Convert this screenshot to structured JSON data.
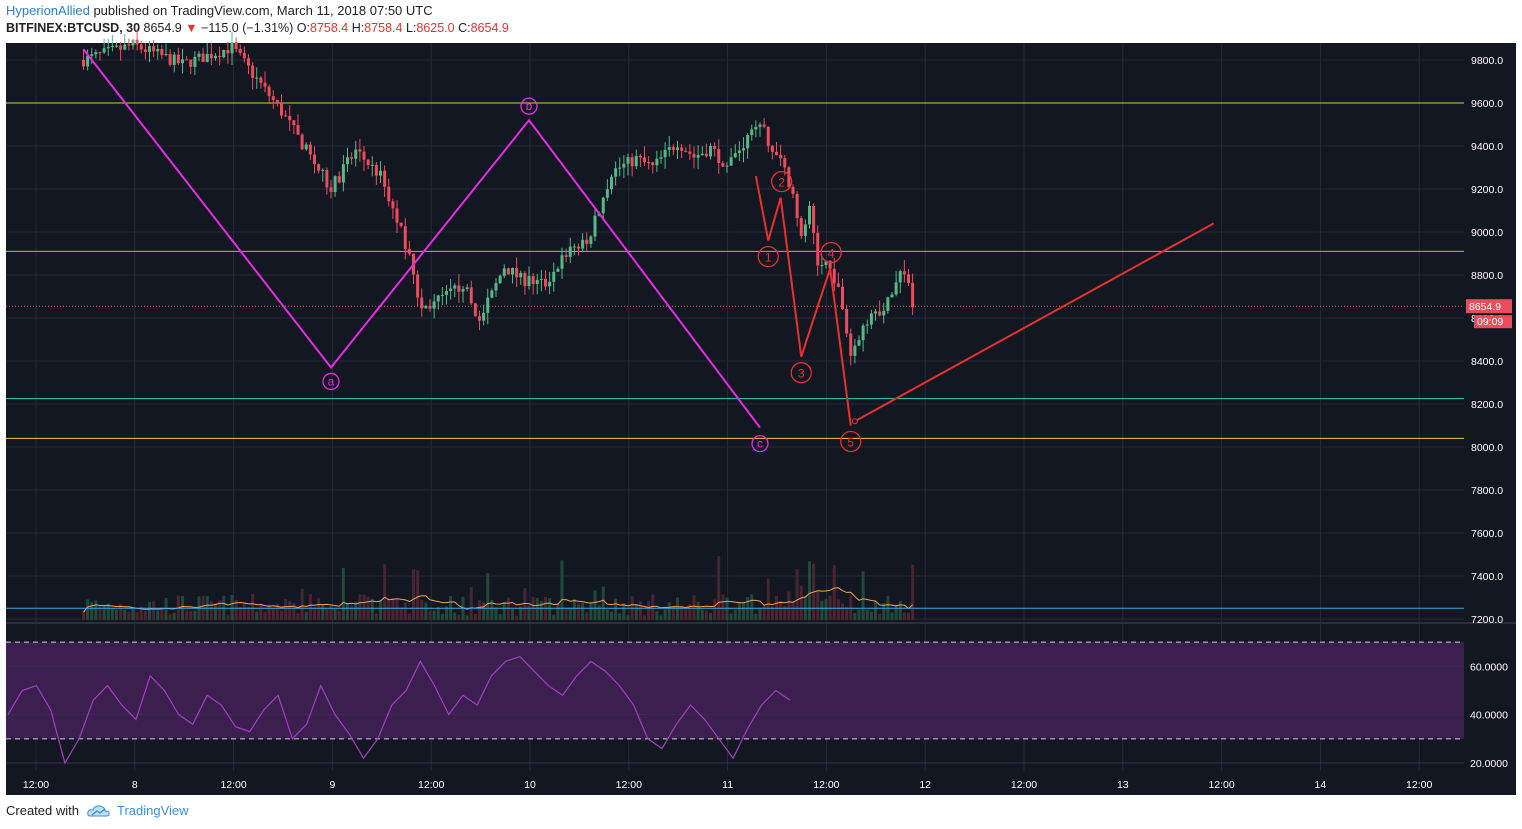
{
  "header": {
    "author": "HyperionAllied",
    "published_text": "published on TradingView.com, March 11, 2018 07:50 UTC",
    "symbol": "BITFINEX:BTCUSD, 30",
    "last": "8654.9",
    "change_arrow": "▼",
    "change": "−115.0 (−1.31%)",
    "o_label": "O:",
    "o_value": "8758.4",
    "h_label": "H:",
    "h_value": "8758.4",
    "l_label": "L:",
    "l_value": "8625.0",
    "c_label": "C:",
    "c_value": "8654.9"
  },
  "footer": {
    "created_with": "Created with",
    "brand": "TradingView",
    "icon": "tradingview-cloud-icon"
  },
  "colors": {
    "background": "#131722",
    "up": "#53b987",
    "down": "#eb4d5c",
    "wave": "#e52ce3",
    "impulse": "#e8302f",
    "rsi": "#a33fc2",
    "rsi_band": "#3b1f4e",
    "volume_ma": "#f0a15a"
  },
  "chart_data": {
    "type": "candlestick",
    "symbol": "BITFINEX:BTCUSD",
    "interval": "30",
    "last_price": 8654.9,
    "last_price_label": "8654.9",
    "countdown_label": "09:09",
    "price_axis": {
      "ticks": [
        "9800.0",
        "9600.0",
        "9400.0",
        "9200.0",
        "9000.0",
        "8800.0",
        "8600.0",
        "8400.0",
        "8200.0",
        "8000.0",
        "7800.0",
        "7600.0",
        "7400.0",
        "7200.0"
      ],
      "range": [
        7200,
        9850
      ]
    },
    "time_axis": {
      "ticks": [
        "12:00",
        "8",
        "12:00",
        "9",
        "12:00",
        "10",
        "12:00",
        "11",
        "12:00",
        "12",
        "12:00",
        "13",
        "12:00",
        "14",
        "12:00"
      ]
    },
    "horizontal_levels": [
      {
        "price": 9600,
        "color": "#b6d84a"
      },
      {
        "price": 8910,
        "color": "#7bd04c"
      },
      {
        "price": 8225,
        "color": "#47c8c0"
      },
      {
        "price": 8040,
        "color": "#f1ca4a"
      },
      {
        "price": 7250,
        "color": "#3ea6e0"
      }
    ],
    "price_path": [
      [
        -60,
        9800
      ],
      [
        -48,
        9870
      ],
      [
        -36,
        9780
      ],
      [
        -24,
        9860
      ],
      [
        -12,
        9560
      ],
      [
        0,
        9200
      ],
      [
        6,
        9380
      ],
      [
        12,
        9260
      ],
      [
        18,
        8950
      ],
      [
        22,
        8640
      ],
      [
        28,
        8700
      ],
      [
        32,
        8760
      ],
      [
        36,
        8580
      ],
      [
        42,
        8840
      ],
      [
        46,
        8780
      ],
      [
        52,
        8760
      ],
      [
        58,
        8930
      ],
      [
        62,
        8940
      ],
      [
        68,
        9280
      ],
      [
        74,
        9340
      ],
      [
        78,
        9300
      ],
      [
        84,
        9420
      ],
      [
        88,
        9350
      ],
      [
        92,
        9390
      ],
      [
        96,
        9310
      ],
      [
        100,
        9410
      ],
      [
        104,
        9520
      ],
      [
        106,
        9400
      ],
      [
        108,
        9380
      ],
      [
        110,
        9280
      ],
      [
        112,
        9200
      ],
      [
        114,
        8960
      ],
      [
        116,
        9100
      ],
      [
        118,
        8840
      ],
      [
        120,
        8860
      ],
      [
        122,
        8790
      ],
      [
        124,
        8650
      ],
      [
        126,
        8430
      ],
      [
        128,
        8520
      ],
      [
        130,
        8590
      ],
      [
        132,
        8660
      ],
      [
        134,
        8620
      ],
      [
        136,
        8720
      ],
      [
        138,
        8810
      ],
      [
        140,
        8770
      ],
      [
        141,
        8655
      ]
    ],
    "waves": {
      "abc": [
        {
          "label": "a",
          "x": -60,
          "price": 9850
        },
        {
          "label": "a",
          "x": 0,
          "price": 8370
        },
        {
          "label": "b",
          "x": 48,
          "price": 9520
        },
        {
          "label": "c",
          "x": 104,
          "price": 8090
        }
      ],
      "abc_labels": [
        "a",
        "b",
        "c"
      ],
      "impulse": [
        {
          "label": "",
          "x": 103,
          "price": 9260
        },
        {
          "label": "1",
          "x": 106,
          "price": 8960
        },
        {
          "label": "2",
          "x": 109,
          "price": 9160
        },
        {
          "label": "3",
          "x": 114,
          "price": 8420
        },
        {
          "label": "4",
          "x": 121,
          "price": 8830
        },
        {
          "label": "5",
          "x": 126,
          "price": 8100
        }
      ],
      "impulse_labels": [
        "1",
        "2",
        "3",
        "4",
        "5"
      ]
    },
    "trendline": {
      "from": [
        127,
        8120
      ],
      "to": [
        214,
        9040
      ],
      "color": "#e8302f"
    },
    "volume": {
      "ma_color": "#f0a15a"
    },
    "rsi": {
      "ticks": [
        "60.0000",
        "40.0000",
        "20.0000"
      ],
      "overbought": 70,
      "oversold": 30,
      "range": [
        20,
        75
      ],
      "values": [
        40,
        50,
        52,
        42,
        20,
        30,
        46,
        52,
        44,
        38,
        56,
        50,
        40,
        36,
        48,
        44,
        35,
        33,
        42,
        48,
        30,
        36,
        52,
        40,
        32,
        22,
        30,
        44,
        50,
        62,
        52,
        40,
        48,
        44,
        56,
        62,
        64,
        58,
        52,
        48,
        56,
        62,
        58,
        52,
        44,
        30,
        26,
        36,
        44,
        38,
        30,
        22,
        34,
        44,
        50,
        46
      ]
    }
  }
}
